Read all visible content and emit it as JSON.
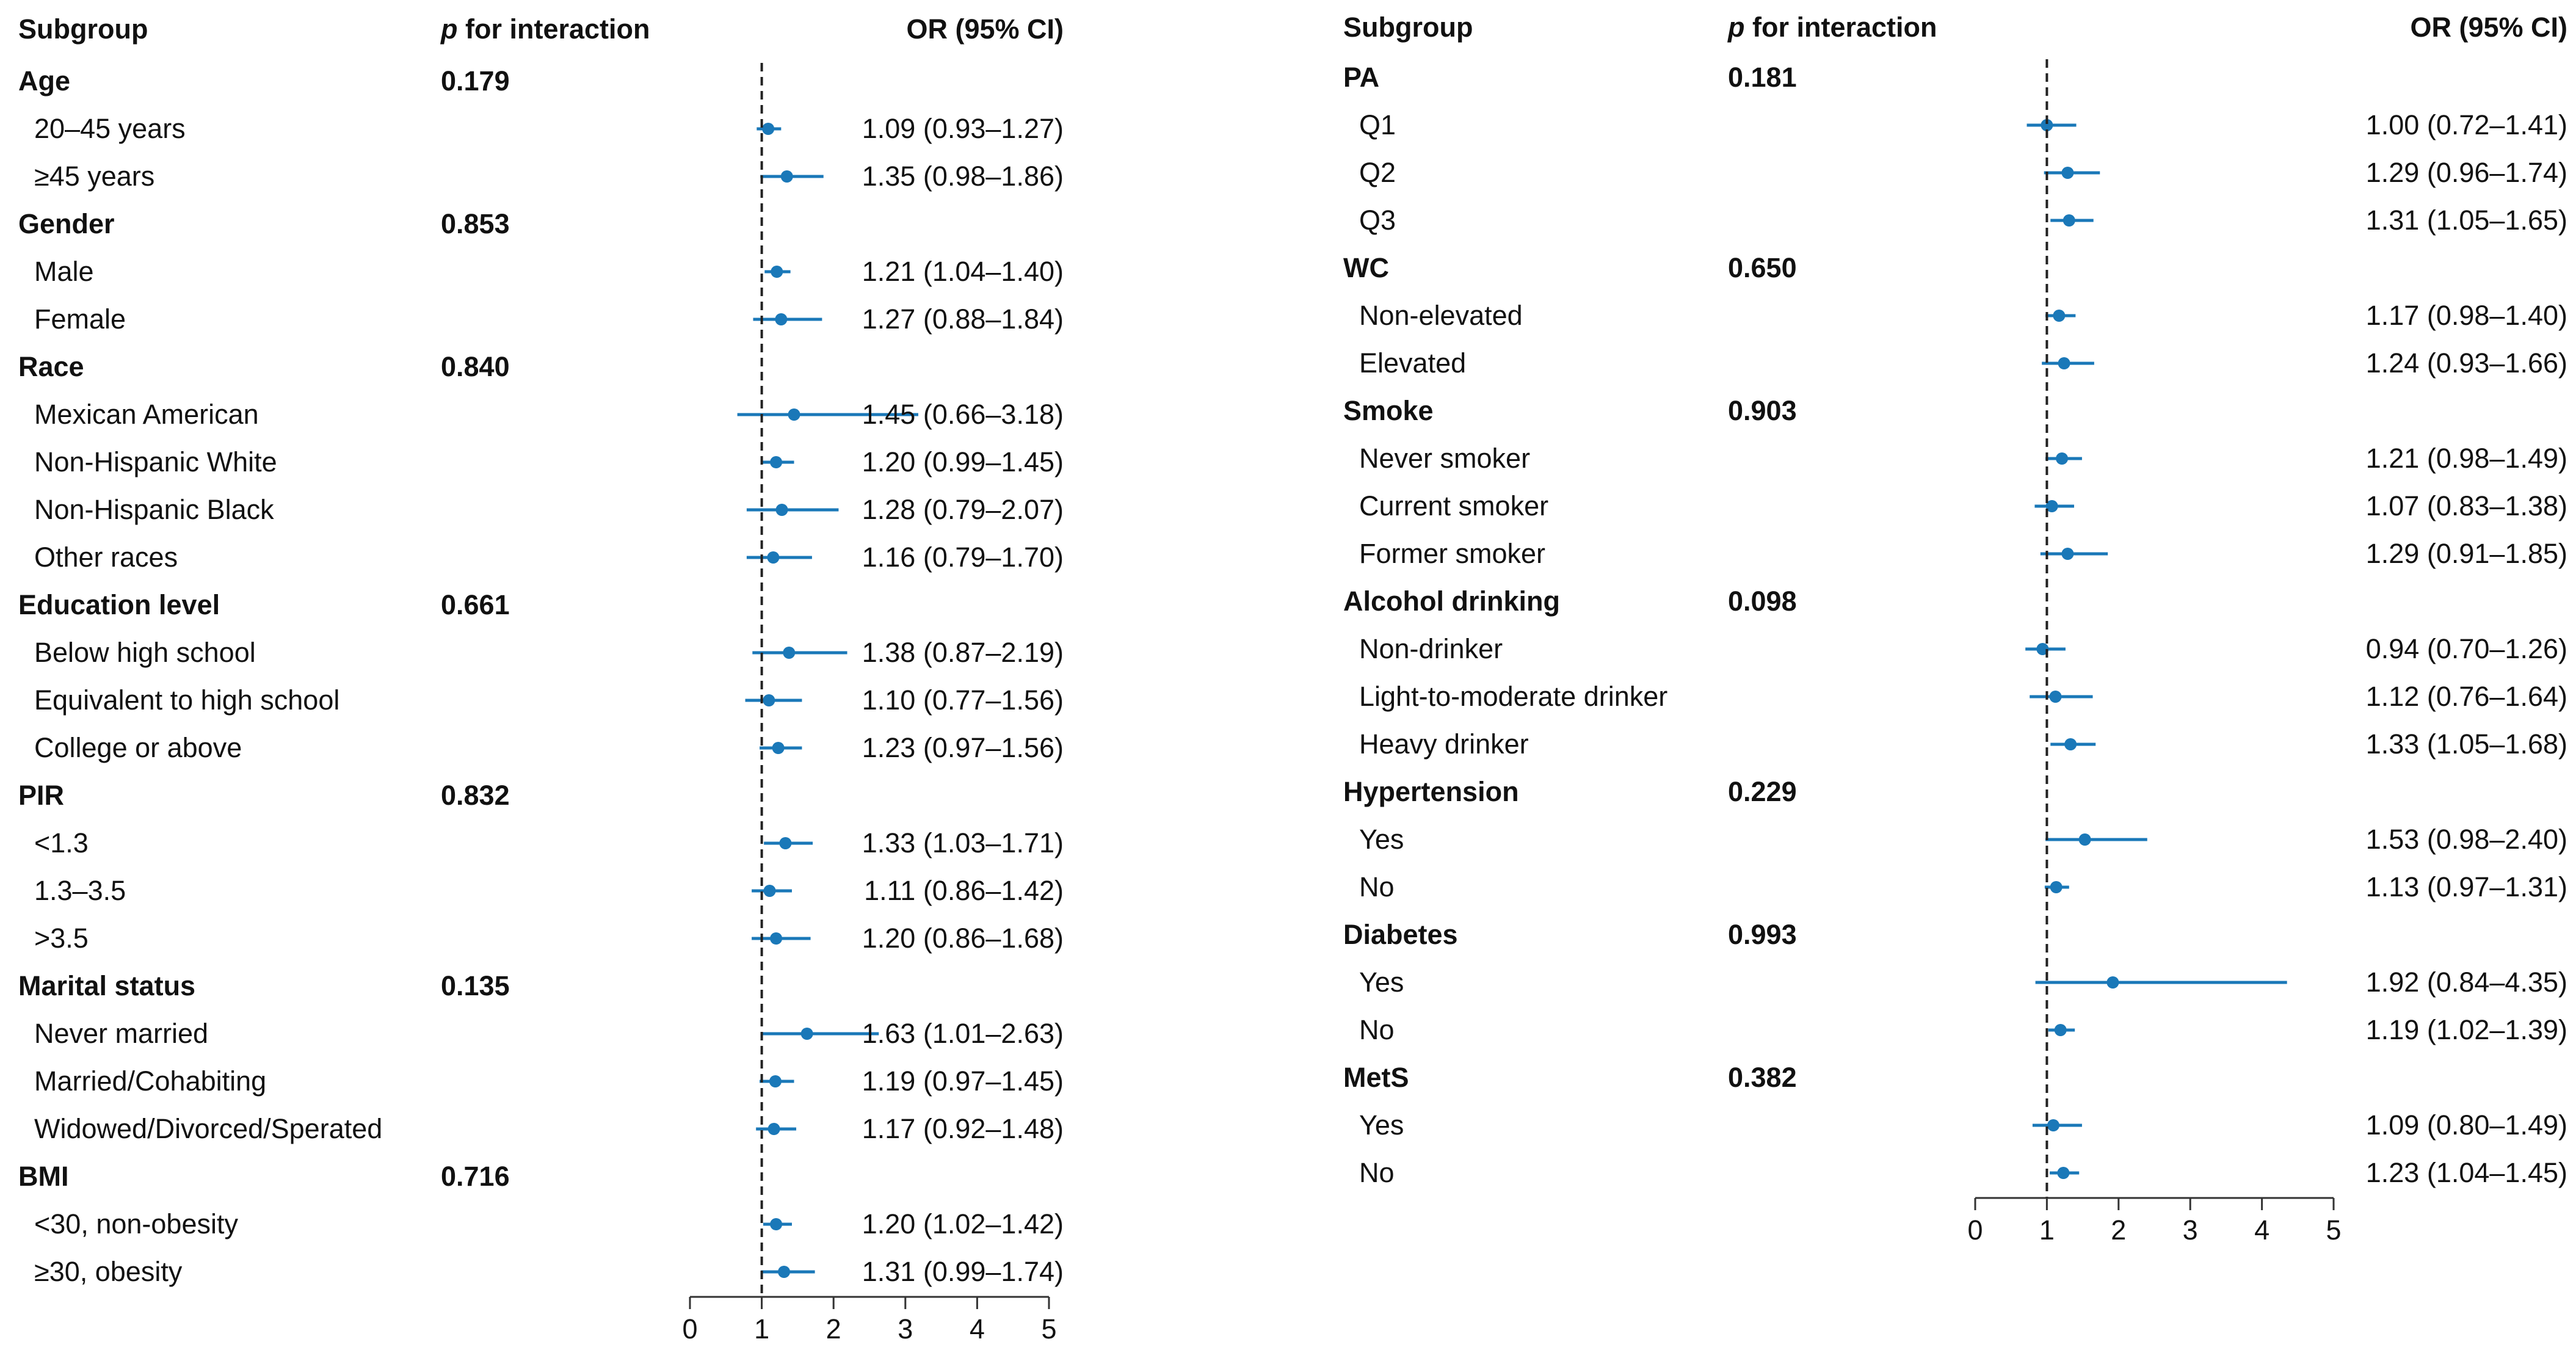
{
  "colors": {
    "marker": "#1a78b8",
    "text": "#111111",
    "axis": "#333333"
  },
  "chart_data": [
    {
      "type": "forest",
      "headers": {
        "subgroup": "Subgroup",
        "p_prefix": "p",
        "p_suffix": " for interaction",
        "or": "OR (95% CI)"
      },
      "reference_line": 1,
      "xlim": [
        0,
        5
      ],
      "ticks": [
        "0",
        "1",
        "2",
        "3",
        "4",
        "5"
      ],
      "groups": [
        {
          "name": "Age",
          "p": "0.179",
          "items": [
            {
              "label": "20–45 years",
              "or": 1.09,
              "lo": 0.93,
              "hi": 1.27,
              "text": "1.09 (0.93–1.27)"
            },
            {
              "label": "≥45 years",
              "or": 1.35,
              "lo": 0.98,
              "hi": 1.86,
              "text": "1.35 (0.98–1.86)"
            }
          ]
        },
        {
          "name": "Gender",
          "p": "0.853",
          "items": [
            {
              "label": "Male",
              "or": 1.21,
              "lo": 1.04,
              "hi": 1.4,
              "text": "1.21 (1.04–1.40)"
            },
            {
              "label": "Female",
              "or": 1.27,
              "lo": 0.88,
              "hi": 1.84,
              "text": "1.27 (0.88–1.84)"
            }
          ]
        },
        {
          "name": "Race",
          "p": "0.840",
          "items": [
            {
              "label": "Mexican American",
              "or": 1.45,
              "lo": 0.66,
              "hi": 3.18,
              "text": "1.45 (0.66–3.18)"
            },
            {
              "label": "Non-Hispanic White",
              "or": 1.2,
              "lo": 0.99,
              "hi": 1.45,
              "text": "1.20 (0.99–1.45)"
            },
            {
              "label": "Non-Hispanic Black",
              "or": 1.28,
              "lo": 0.79,
              "hi": 2.07,
              "text": "1.28 (0.79–2.07)"
            },
            {
              "label": "Other races",
              "or": 1.16,
              "lo": 0.79,
              "hi": 1.7,
              "text": "1.16 (0.79–1.70)"
            }
          ]
        },
        {
          "name": "Education level",
          "p": "0.661",
          "items": [
            {
              "label": "Below high school",
              "or": 1.38,
              "lo": 0.87,
              "hi": 2.19,
              "text": "1.38 (0.87–2.19)"
            },
            {
              "label": "Equivalent to high school",
              "or": 1.1,
              "lo": 0.77,
              "hi": 1.56,
              "text": "1.10 (0.77–1.56)"
            },
            {
              "label": "College or above",
              "or": 1.23,
              "lo": 0.97,
              "hi": 1.56,
              "text": "1.23 (0.97–1.56)"
            }
          ]
        },
        {
          "name": "PIR",
          "p": "0.832",
          "items": [
            {
              "label": "<1.3",
              "or": 1.33,
              "lo": 1.03,
              "hi": 1.71,
              "text": "1.33 (1.03–1.71)"
            },
            {
              "label": "1.3–3.5",
              "or": 1.11,
              "lo": 0.86,
              "hi": 1.42,
              "text": "1.11 (0.86–1.42)"
            },
            {
              "label": ">3.5",
              "or": 1.2,
              "lo": 0.86,
              "hi": 1.68,
              "text": "1.20 (0.86–1.68)"
            }
          ]
        },
        {
          "name": "Marital status",
          "p": "0.135",
          "items": [
            {
              "label": "Never married",
              "or": 1.63,
              "lo": 1.01,
              "hi": 2.63,
              "text": "1.63 (1.01–2.63)"
            },
            {
              "label": "Married/Cohabiting",
              "or": 1.19,
              "lo": 0.97,
              "hi": 1.45,
              "text": "1.19 (0.97–1.45)"
            },
            {
              "label": "Widowed/Divorced/Sperated",
              "or": 1.17,
              "lo": 0.92,
              "hi": 1.48,
              "text": "1.17 (0.92–1.48)"
            }
          ]
        },
        {
          "name": "BMI",
          "p": "0.716",
          "items": [
            {
              "label": "<30, non-obesity",
              "or": 1.2,
              "lo": 1.02,
              "hi": 1.42,
              "text": "1.20 (1.02–1.42)"
            },
            {
              "label": "≥30, obesity",
              "or": 1.31,
              "lo": 0.99,
              "hi": 1.74,
              "text": "1.31 (0.99–1.74)"
            }
          ]
        }
      ]
    },
    {
      "type": "forest",
      "headers": {
        "subgroup": "Subgroup",
        "p_prefix": "p",
        "p_suffix": " for interaction",
        "or": "OR (95% CI)"
      },
      "reference_line": 1,
      "xlim": [
        0,
        5
      ],
      "ticks": [
        "0",
        "1",
        "2",
        "3",
        "4",
        "5"
      ],
      "groups": [
        {
          "name": "PA",
          "p": "0.181",
          "items": [
            {
              "label": "Q1",
              "or": 1.0,
              "lo": 0.72,
              "hi": 1.41,
              "text": "1.00 (0.72–1.41)"
            },
            {
              "label": "Q2",
              "or": 1.29,
              "lo": 0.96,
              "hi": 1.74,
              "text": "1.29 (0.96–1.74)"
            },
            {
              "label": "Q3",
              "or": 1.31,
              "lo": 1.05,
              "hi": 1.65,
              "text": "1.31 (1.05–1.65)"
            }
          ]
        },
        {
          "name": "WC",
          "p": "0.650",
          "items": [
            {
              "label": "Non-elevated",
              "or": 1.17,
              "lo": 0.98,
              "hi": 1.4,
              "text": "1.17 (0.98–1.40)"
            },
            {
              "label": "Elevated",
              "or": 1.24,
              "lo": 0.93,
              "hi": 1.66,
              "text": "1.24 (0.93–1.66)"
            }
          ]
        },
        {
          "name": "Smoke",
          "p": "0.903",
          "items": [
            {
              "label": "Never smoker",
              "or": 1.21,
              "lo": 0.98,
              "hi": 1.49,
              "text": "1.21 (0.98–1.49)"
            },
            {
              "label": "Current smoker",
              "or": 1.07,
              "lo": 0.83,
              "hi": 1.38,
              "text": "1.07 (0.83–1.38)"
            },
            {
              "label": "Former smoker",
              "or": 1.29,
              "lo": 0.91,
              "hi": 1.85,
              "text": "1.29 (0.91–1.85)"
            }
          ]
        },
        {
          "name": "Alcohol drinking",
          "p": "0.098",
          "items": [
            {
              "label": "Non-drinker",
              "or": 0.94,
              "lo": 0.7,
              "hi": 1.26,
              "text": "0.94 (0.70–1.26)"
            },
            {
              "label": "Light-to-moderate drinker",
              "or": 1.12,
              "lo": 0.76,
              "hi": 1.64,
              "text": "1.12 (0.76–1.64)"
            },
            {
              "label": "Heavy drinker",
              "or": 1.33,
              "lo": 1.05,
              "hi": 1.68,
              "text": "1.33 (1.05–1.68)"
            }
          ]
        },
        {
          "name": "Hypertension",
          "p": "0.229",
          "items": [
            {
              "label": "Yes",
              "or": 1.53,
              "lo": 0.98,
              "hi": 2.4,
              "text": "1.53 (0.98–2.40)"
            },
            {
              "label": "No",
              "or": 1.13,
              "lo": 0.97,
              "hi": 1.31,
              "text": "1.13 (0.97–1.31)"
            }
          ]
        },
        {
          "name": "Diabetes",
          "p": "0.993",
          "items": [
            {
              "label": "Yes",
              "or": 1.92,
              "lo": 0.84,
              "hi": 4.35,
              "text": "1.92 (0.84–4.35)"
            },
            {
              "label": "No",
              "or": 1.19,
              "lo": 1.02,
              "hi": 1.39,
              "text": "1.19 (1.02–1.39)"
            }
          ]
        },
        {
          "name": "MetS",
          "p": "0.382",
          "items": [
            {
              "label": "Yes",
              "or": 1.09,
              "lo": 0.8,
              "hi": 1.49,
              "text": "1.09 (0.80–1.49)"
            },
            {
              "label": "No",
              "or": 1.23,
              "lo": 1.04,
              "hi": 1.45,
              "text": "1.23 (1.04–1.45)"
            }
          ]
        }
      ]
    }
  ]
}
